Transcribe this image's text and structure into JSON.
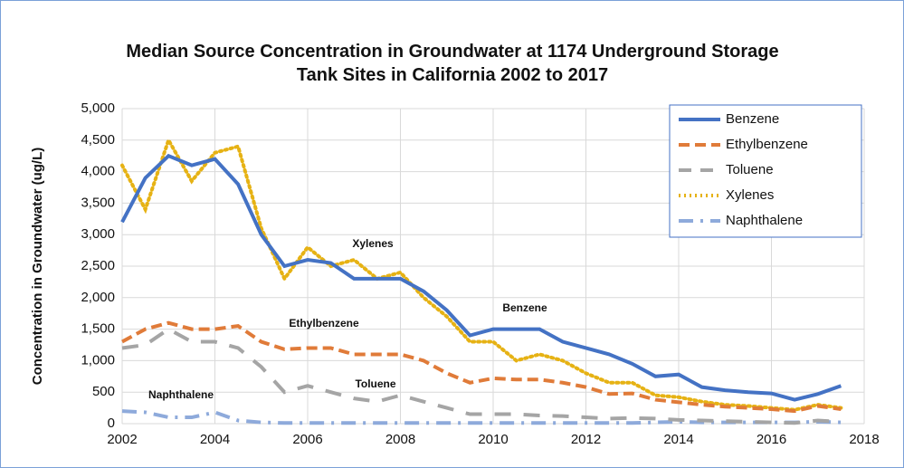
{
  "chart_data": {
    "type": "line",
    "title": "Median Source Concentration in Groundwater at 1174 Underground Storage Tank Sites in California 2002 to 2017",
    "y_label": "Concentration in Groundwater (ug/L)",
    "x": [
      2002,
      2002.5,
      2003,
      2003.5,
      2004,
      2004.5,
      2005,
      2005.5,
      2006,
      2006.5,
      2007,
      2007.5,
      2008,
      2008.5,
      2009,
      2009.5,
      2010,
      2010.5,
      2011,
      2011.5,
      2012,
      2012.5,
      2013,
      2013.5,
      2014,
      2014.5,
      2015,
      2015.5,
      2016,
      2016.5,
      2017,
      2017.5
    ],
    "series": [
      {
        "name": "Benzene",
        "color": "#4472c4",
        "style": "solid",
        "values": [
          3200,
          3900,
          4250,
          4100,
          4200,
          3800,
          3000,
          2500,
          2600,
          2550,
          2300,
          2300,
          2300,
          2100,
          1800,
          1400,
          1500,
          1500,
          1500,
          1300,
          1200,
          1100,
          950,
          750,
          780,
          580,
          530,
          500,
          480,
          380,
          470,
          600
        ]
      },
      {
        "name": "Ethylbenzene",
        "color": "#e07b39",
        "style": "dashed",
        "values": [
          1300,
          1500,
          1600,
          1500,
          1500,
          1550,
          1300,
          1180,
          1200,
          1200,
          1100,
          1100,
          1100,
          1000,
          800,
          650,
          720,
          700,
          700,
          650,
          580,
          470,
          480,
          380,
          340,
          300,
          270,
          250,
          230,
          200,
          280,
          230
        ]
      },
      {
        "name": "Toluene",
        "color": "#a5a5a5",
        "style": "longdash",
        "values": [
          1200,
          1250,
          1500,
          1300,
          1300,
          1200,
          900,
          500,
          600,
          500,
          400,
          350,
          450,
          350,
          250,
          150,
          150,
          150,
          130,
          120,
          100,
          80,
          90,
          80,
          60,
          50,
          40,
          30,
          20,
          10,
          50,
          30
        ]
      },
      {
        "name": "Xylenes",
        "color": "#e6b214",
        "style": "dotted",
        "values": [
          4100,
          3400,
          4500,
          3850,
          4300,
          4400,
          3100,
          2300,
          2800,
          2500,
          2600,
          2300,
          2400,
          2000,
          1700,
          1300,
          1300,
          1000,
          1100,
          1000,
          800,
          650,
          650,
          450,
          420,
          350,
          300,
          280,
          250,
          220,
          300,
          250
        ]
      },
      {
        "name": "Naphthalene",
        "color": "#8eaadb",
        "style": "dashdot",
        "values": [
          200,
          180,
          100,
          100,
          180,
          50,
          20,
          10,
          10,
          10,
          10,
          10,
          10,
          10,
          10,
          10,
          10,
          10,
          10,
          10,
          10,
          10,
          10,
          20,
          30,
          20,
          20,
          20,
          20,
          20,
          30,
          20
        ]
      }
    ],
    "annotations": [
      "Xylenes",
      "Ethylbenzene",
      "Benzene",
      "Toluene",
      "Naphthalene"
    ],
    "xlim": [
      2002,
      2018
    ],
    "xticks": [
      2002,
      2004,
      2006,
      2008,
      2010,
      2012,
      2014,
      2016,
      2018
    ],
    "ylim": [
      0,
      5000
    ],
    "yticks": [
      0,
      500,
      {
        "value": 1000,
        "label": "1,000"
      },
      {
        "value": 1500,
        "label": "1,500"
      },
      {
        "value": 2000,
        "label": "2,000"
      },
      {
        "value": 2500,
        "label": "2,500"
      },
      {
        "value": 3000,
        "label": "3,000"
      },
      {
        "value": 3500,
        "label": "3,500"
      },
      {
        "value": 4000,
        "label": "4,000"
      },
      {
        "value": 4500,
        "label": "4,500"
      },
      {
        "value": 5000,
        "label": "5,000"
      }
    ],
    "grid": true,
    "legend": "upper right"
  }
}
